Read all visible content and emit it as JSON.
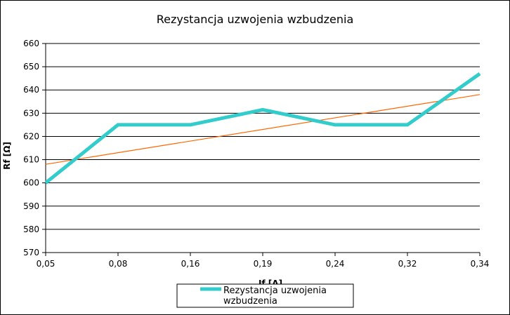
{
  "chart_data": {
    "type": "line",
    "title": "Rezystancja uzwojenia wzbudzenia",
    "xlabel": "If [A]",
    "ylabel": "Rf [Ω]",
    "categories": [
      "0,05",
      "0,08",
      "0,16",
      "0,19",
      "0,24",
      "0,32",
      "0,34"
    ],
    "ylim": [
      570,
      660
    ],
    "yticks": [
      570,
      580,
      590,
      600,
      610,
      620,
      630,
      640,
      650,
      660
    ],
    "grid": "horizontal",
    "legend_position": "bottom",
    "series": [
      {
        "name": "Rezystancja uzwojenia wzbudzenia",
        "legend_lines": [
          "Rezystancja uzwojenia",
          "wzbudzenia"
        ],
        "color": "#33cccc",
        "values": [
          600,
          625,
          625,
          631.5,
          625,
          625,
          647
        ]
      }
    ],
    "trendline": {
      "color": "#ff6600",
      "start": 608,
      "end": 638
    }
  }
}
